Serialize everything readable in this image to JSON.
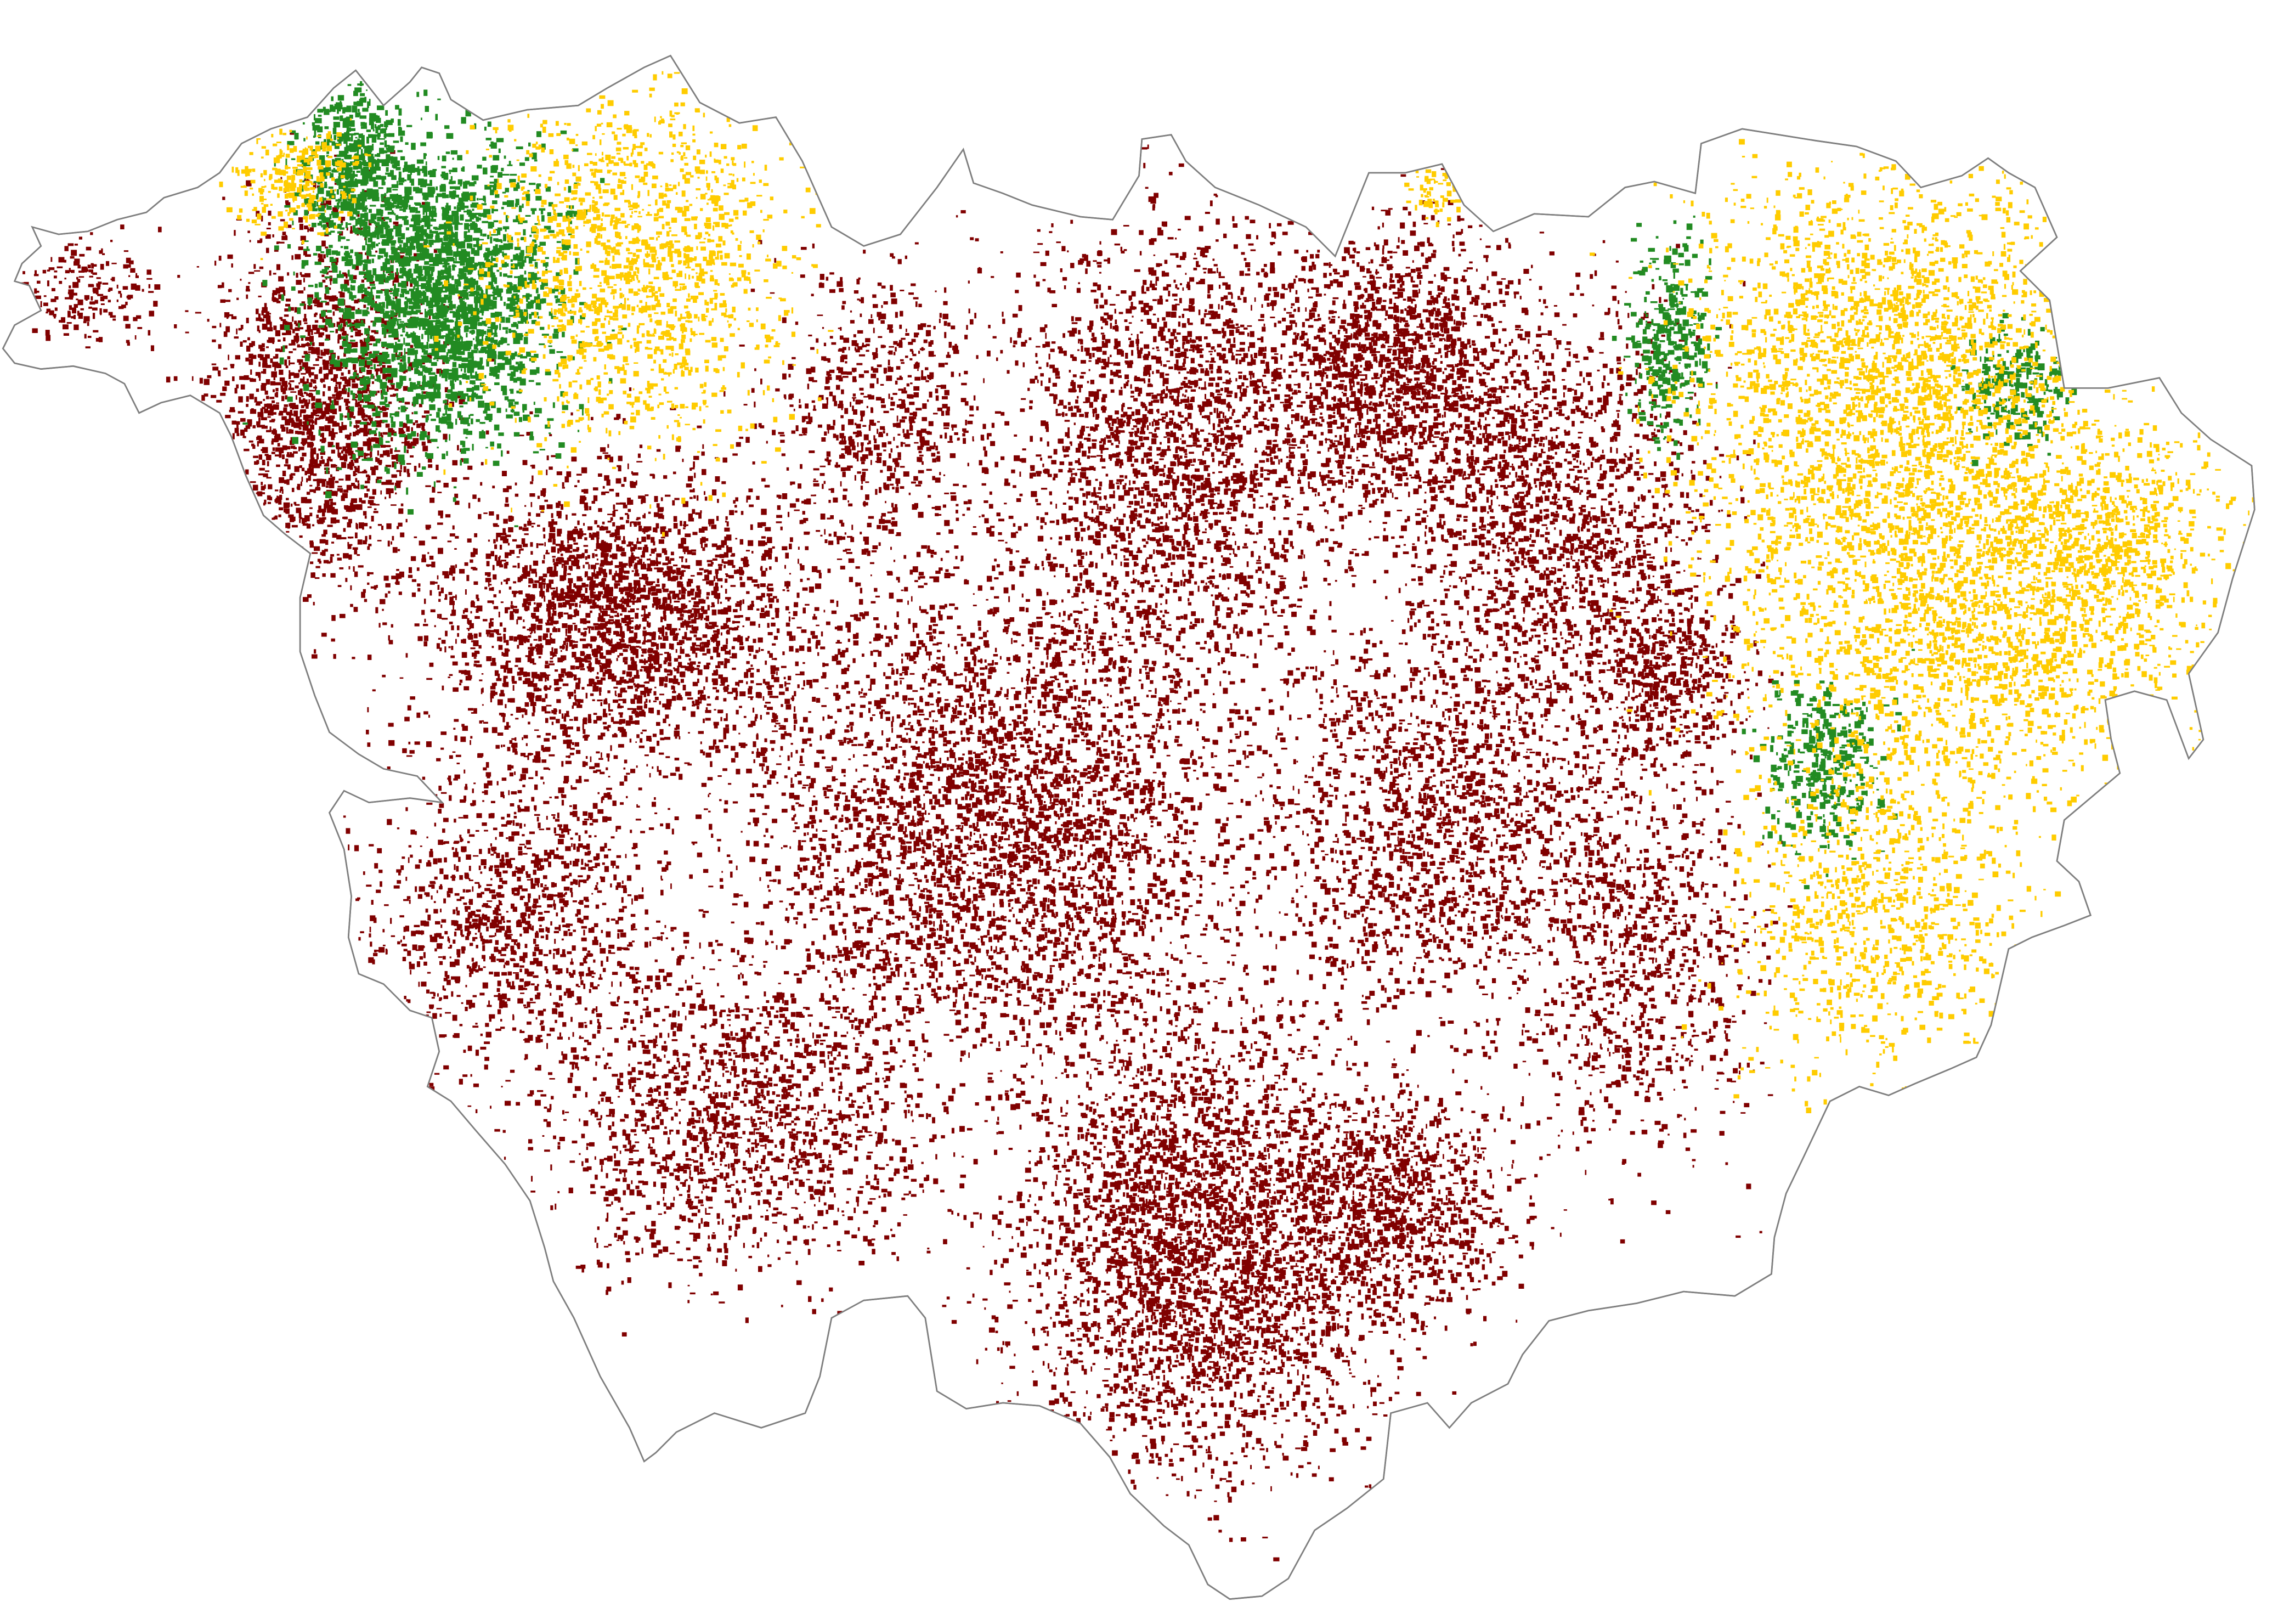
{
  "map": {
    "outline_color": "#7f7f7f",
    "background_color": "#ffffff",
    "land_fill": "#ffffff",
    "classes": [
      {
        "id": "dark-red",
        "color": "#800000"
      },
      {
        "id": "green",
        "color": "#228b22"
      },
      {
        "id": "yellow",
        "color": "#ffcc00"
      }
    ]
  }
}
